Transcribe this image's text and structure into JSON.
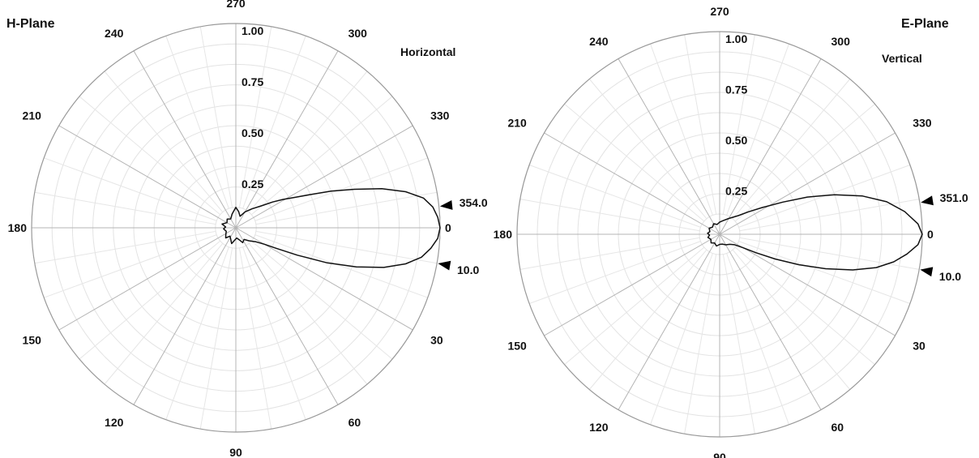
{
  "chart_data": [
    {
      "type": "polar-line",
      "title": "H-Plane",
      "series": [
        {
          "name": "Horizontal",
          "points": [
            [
              0,
              1.0
            ],
            [
              3,
              0.99
            ],
            [
              6,
              0.96
            ],
            [
              9,
              0.92
            ],
            [
              12,
              0.85
            ],
            [
              15,
              0.75
            ],
            [
              18,
              0.62
            ],
            [
              21,
              0.48
            ],
            [
              24,
              0.33
            ],
            [
              27,
              0.22
            ],
            [
              30,
              0.16
            ],
            [
              35,
              0.12
            ],
            [
              45,
              0.09
            ],
            [
              55,
              0.07
            ],
            [
              65,
              0.08
            ],
            [
              75,
              0.06
            ],
            [
              85,
              0.05
            ],
            [
              95,
              0.06
            ],
            [
              105,
              0.08
            ],
            [
              115,
              0.06
            ],
            [
              125,
              0.05
            ],
            [
              135,
              0.07
            ],
            [
              145,
              0.06
            ],
            [
              160,
              0.05
            ],
            [
              175,
              0.06
            ],
            [
              185,
              0.05
            ],
            [
              195,
              0.07
            ],
            [
              210,
              0.05
            ],
            [
              225,
              0.06
            ],
            [
              240,
              0.05
            ],
            [
              255,
              0.07
            ],
            [
              270,
              0.1
            ],
            [
              280,
              0.08
            ],
            [
              290,
              0.06
            ],
            [
              300,
              0.09
            ],
            [
              310,
              0.12
            ],
            [
              320,
              0.17
            ],
            [
              325,
              0.22
            ],
            [
              329,
              0.27
            ],
            [
              333,
              0.33
            ],
            [
              336,
              0.4
            ],
            [
              339,
              0.5
            ],
            [
              342,
              0.61
            ],
            [
              345,
              0.74
            ],
            [
              348,
              0.85
            ],
            [
              351,
              0.93
            ],
            [
              354,
              0.97
            ],
            [
              357,
              0.99
            ],
            [
              360,
              1.0
            ]
          ]
        }
      ],
      "angle_ticks": [
        "0",
        "30",
        "60",
        "90",
        "120",
        "150",
        "180",
        "210",
        "240",
        "270",
        "300",
        "330"
      ],
      "radial_ticks": [
        "0.25",
        "0.50",
        "0.75",
        "1.00"
      ],
      "markers": [
        {
          "angle": 354.0,
          "label": "354.0"
        },
        {
          "angle": 10.0,
          "label": "10.0"
        }
      ]
    },
    {
      "type": "polar-line",
      "title": "E-Plane",
      "series": [
        {
          "name": "Vertical",
          "points": [
            [
              0,
              1.0
            ],
            [
              3,
              0.98
            ],
            [
              6,
              0.93
            ],
            [
              9,
              0.87
            ],
            [
              12,
              0.79
            ],
            [
              15,
              0.68
            ],
            [
              18,
              0.55
            ],
            [
              21,
              0.42
            ],
            [
              24,
              0.3
            ],
            [
              27,
              0.2
            ],
            [
              30,
              0.13
            ],
            [
              35,
              0.09
            ],
            [
              45,
              0.07
            ],
            [
              60,
              0.06
            ],
            [
              75,
              0.05
            ],
            [
              90,
              0.05
            ],
            [
              105,
              0.06
            ],
            [
              120,
              0.05
            ],
            [
              135,
              0.06
            ],
            [
              150,
              0.05
            ],
            [
              165,
              0.06
            ],
            [
              175,
              0.05
            ],
            [
              185,
              0.06
            ],
            [
              195,
              0.05
            ],
            [
              210,
              0.06
            ],
            [
              225,
              0.05
            ],
            [
              240,
              0.06
            ],
            [
              255,
              0.05
            ],
            [
              270,
              0.06
            ],
            [
              285,
              0.07
            ],
            [
              300,
              0.09
            ],
            [
              315,
              0.13
            ],
            [
              322,
              0.18
            ],
            [
              328,
              0.25
            ],
            [
              333,
              0.35
            ],
            [
              337,
              0.47
            ],
            [
              341,
              0.6
            ],
            [
              345,
              0.73
            ],
            [
              349,
              0.84
            ],
            [
              353,
              0.92
            ],
            [
              357,
              0.98
            ],
            [
              360,
              1.0
            ]
          ]
        }
      ],
      "angle_ticks": [
        "0",
        "30",
        "60",
        "90",
        "120",
        "150",
        "180",
        "210",
        "240",
        "270",
        "300",
        "330"
      ],
      "radial_ticks": [
        "0.25",
        "0.50",
        "0.75",
        "1.00"
      ],
      "markers": [
        {
          "angle": 351.0,
          "label": "351.0"
        },
        {
          "angle": 10.0,
          "label": "10.0"
        }
      ]
    }
  ]
}
